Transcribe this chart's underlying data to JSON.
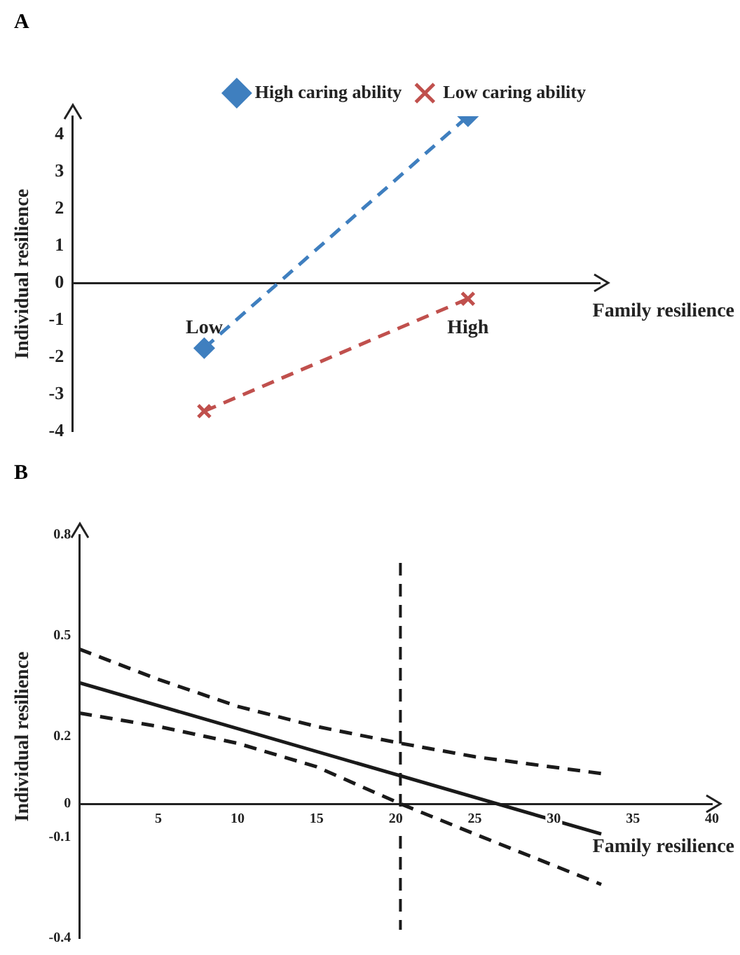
{
  "chart_data": [
    {
      "type": "line",
      "title": "A",
      "xlabel": "Family resilience",
      "ylabel": "Individual resilience",
      "categories": [
        "Low",
        "High"
      ],
      "ylim": [
        -4,
        4.5
      ],
      "yticks": [
        -4,
        -3,
        -2,
        -1,
        0,
        1,
        2,
        3,
        4
      ],
      "legend": "top right",
      "line_style": "dashed",
      "series": [
        {
          "name": "High caring ability",
          "color": "#3f7fbf",
          "marker": "diamond",
          "values": [
            -1.75,
            4.5
          ]
        },
        {
          "name": "Low caring ability",
          "color": "#c0504d",
          "marker": "cross",
          "values": [
            -3.45,
            -0.42
          ]
        }
      ]
    },
    {
      "type": "line",
      "title": "B",
      "xlabel": "Family resilience",
      "ylabel": "Individual resilience",
      "xlim": [
        0,
        40
      ],
      "xticks": [
        5,
        10,
        15,
        20,
        25,
        30,
        35,
        40
      ],
      "ylim": [
        -0.4,
        0.8
      ],
      "yticks": [
        -0.4,
        -0.1,
        0,
        0.2,
        0.5,
        0.8
      ],
      "marker": "none",
      "series": [
        {
          "color": "#1a1a1a",
          "line_style": "solid",
          "x": [
            0,
            33
          ],
          "values": [
            0.36,
            -0.09
          ]
        },
        {
          "color": "#1a1a1a",
          "line_style": "dashed",
          "x": [
            0,
            5,
            10,
            15,
            20.3,
            25,
            33
          ],
          "values": [
            0.46,
            0.37,
            0.29,
            0.23,
            0.18,
            0.14,
            0.09
          ]
        },
        {
          "color": "#1a1a1a",
          "line_style": "dashed",
          "x": [
            0,
            5,
            10,
            15,
            20.3,
            25,
            33
          ],
          "values": [
            0.27,
            0.23,
            0.18,
            0.11,
            0,
            -0.09,
            -0.24
          ]
        }
      ],
      "ref_lines": [
        {
          "axis": "x",
          "value": 20.3,
          "color": "#1a1a1a",
          "line_style": "dashed"
        }
      ]
    }
  ]
}
